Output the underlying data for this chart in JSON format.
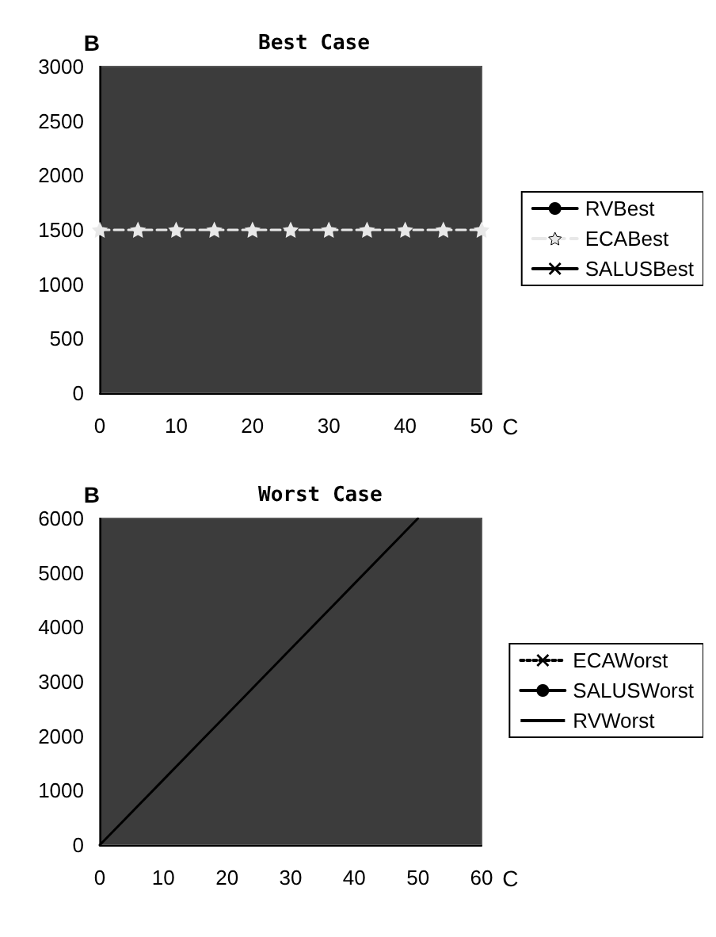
{
  "chart_data": [
    {
      "type": "line",
      "title": "Best Case",
      "xlabel": "C",
      "ylabel": "B",
      "x": [
        0,
        5,
        10,
        15,
        20,
        25,
        30,
        35,
        40,
        45,
        50
      ],
      "xlim": [
        0,
        50
      ],
      "xticks": [
        0,
        10,
        20,
        30,
        40,
        50
      ],
      "ylim": [
        0,
        3000
      ],
      "yticks": [
        0,
        500,
        1000,
        1500,
        2000,
        2500,
        3000
      ],
      "legend": "right",
      "grid": false,
      "series": [
        {
          "name": "RVBest",
          "color": "#000000",
          "marker": "circle",
          "line_style": "solid",
          "values": [
            null,
            null,
            null,
            null,
            null,
            null,
            null,
            null,
            null,
            null,
            null
          ]
        },
        {
          "name": "ECABest",
          "color": "#e8e8e8",
          "marker": "star",
          "line_style": "dashed",
          "values": [
            1500,
            1500,
            1500,
            1500,
            1500,
            1500,
            1500,
            1500,
            1500,
            1500,
            1500
          ]
        },
        {
          "name": "SALUSBest",
          "color": "#000000",
          "marker": "cross",
          "line_style": "solid",
          "values": [
            null,
            null,
            null,
            null,
            null,
            null,
            null,
            null,
            null,
            null,
            null
          ]
        }
      ]
    },
    {
      "type": "line",
      "title": "Worst Case",
      "xlabel": "C",
      "ylabel": "B",
      "xlim": [
        0,
        60
      ],
      "xticks": [
        0,
        10,
        20,
        30,
        40,
        50,
        60
      ],
      "ylim": [
        0,
        6000
      ],
      "yticks": [
        0,
        1000,
        2000,
        3000,
        4000,
        5000,
        6000
      ],
      "x": [
        0,
        10,
        20,
        30,
        40,
        50
      ],
      "legend": "right",
      "grid": false,
      "series": [
        {
          "name": "ECAWorst",
          "color": "#000000",
          "marker": "cross",
          "line_style": "dotted",
          "values": [
            null,
            null,
            null,
            null,
            null,
            null
          ]
        },
        {
          "name": "SALUSWorst",
          "color": "#000000",
          "marker": "circle",
          "line_style": "solid",
          "values": [
            null,
            null,
            null,
            null,
            null,
            null
          ]
        },
        {
          "name": "RVWorst",
          "color": "#000000",
          "marker": "none",
          "line_style": "solid",
          "values": [
            0,
            1200,
            2400,
            3600,
            4800,
            6000
          ]
        }
      ]
    }
  ]
}
